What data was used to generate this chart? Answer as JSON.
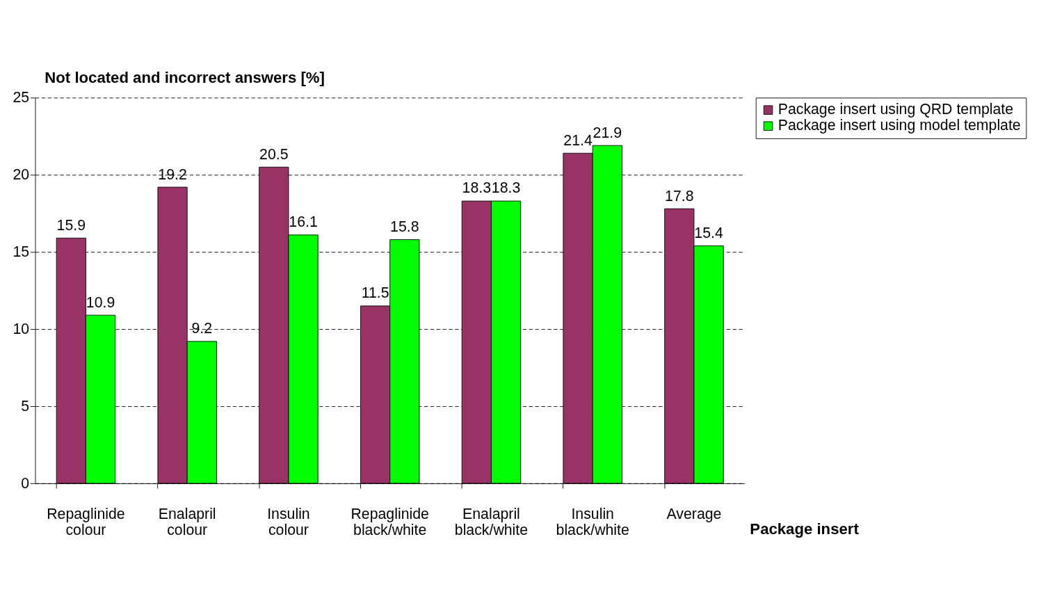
{
  "chart_data": {
    "type": "bar",
    "ylabel": "Not located and incorrect answers [%]",
    "xlabel": "Package insert",
    "categories": [
      "Repaglinide colour",
      "Enalapril colour",
      "Insulin colour",
      "Repaglinide black/white",
      "Enalapril black/white",
      "Insulin black/white",
      "Average"
    ],
    "series": [
      {
        "name": "Package insert using QRD template",
        "color": "#993366",
        "values": [
          15.9,
          19.2,
          20.5,
          11.5,
          18.3,
          21.4,
          17.8
        ]
      },
      {
        "name": "Package insert using model template",
        "color": "#00ff00",
        "values": [
          10.9,
          9.2,
          16.1,
          15.8,
          18.3,
          21.9,
          15.4
        ]
      }
    ],
    "ylim": [
      0,
      25
    ],
    "yticks": [
      0,
      5,
      10,
      15,
      20,
      25
    ],
    "grid": "y",
    "legend": "right",
    "data_labels": true
  }
}
